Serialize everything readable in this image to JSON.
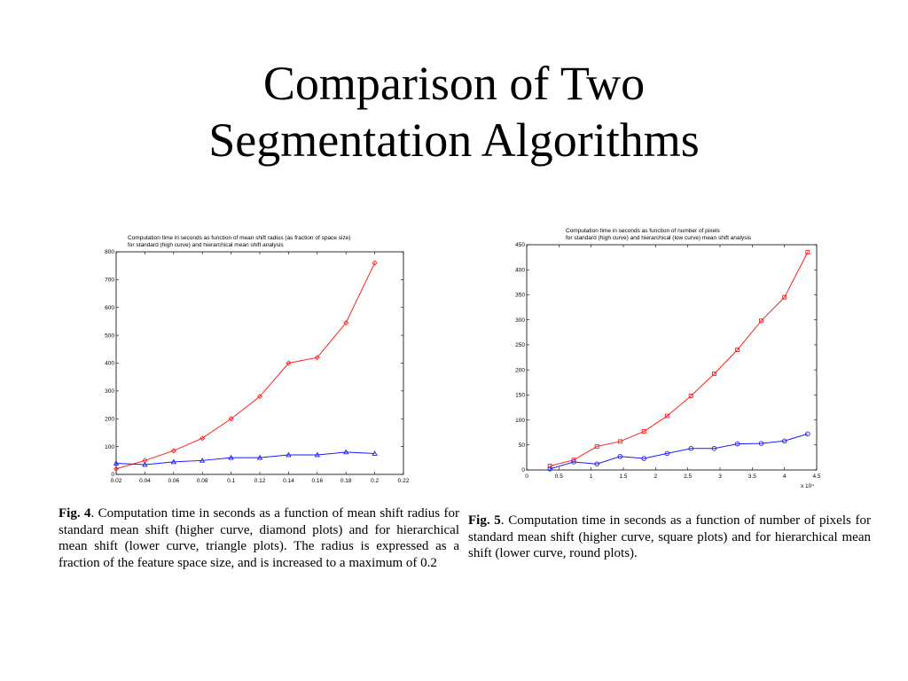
{
  "slide": {
    "title_line1": "Comparison of Two",
    "title_line2": "Segmentation Algorithms"
  },
  "fig4": {
    "caption_label": "Fig. 4",
    "caption_text": ".  Computation time in seconds as a function of mean shift radius for standard mean shift (higher curve, diamond plots) and for hierarchical mean shift (lower curve, triangle plots). The radius is expressed as a fraction of the feature space size, and is increased to a maximum of 0.2"
  },
  "fig5": {
    "caption_label": "Fig. 5",
    "caption_text": ".  Computation time in seconds as a function of number of pixels for standard mean shift (higher curve, square plots) and for hierarchical mean shift (lower curve, round plots)."
  },
  "colors": {
    "standard": "#ff2020",
    "hierarchical": "#1a1aff",
    "axis": "#000000"
  },
  "chart_data": [
    {
      "type": "line",
      "title": "Computation time in seconds as function of mean shift radius (as fraction of space size)",
      "subtitle": "for standard (high curve) and hierarchical mean shift analysis",
      "xlabel": "",
      "ylabel": "",
      "xlim": [
        0.02,
        0.22
      ],
      "ylim": [
        0,
        800
      ],
      "xticks": [
        0.02,
        0.04,
        0.06,
        0.08,
        0.1,
        0.12,
        0.14,
        0.16,
        0.18,
        0.2,
        0.22
      ],
      "xtick_labels": [
        "0.02",
        "0.04",
        "0.06",
        "0.08",
        "0.1",
        "0.12",
        "0.14",
        "0.16",
        "0.18",
        "0.2",
        "0.22"
      ],
      "yticks": [
        0,
        100,
        200,
        300,
        400,
        500,
        600,
        700,
        800
      ],
      "ytick_labels": [
        "0",
        "100",
        "200",
        "300",
        "400",
        "500",
        "600",
        "700",
        "800"
      ],
      "xtick_exponent": "",
      "grid": false,
      "series": [
        {
          "marker": "diamond",
          "color": "#ff2020",
          "x": [
            0.02,
            0.04,
            0.06,
            0.08,
            0.1,
            0.12,
            0.14,
            0.16,
            0.18,
            0.2
          ],
          "y": [
            20,
            50,
            85,
            130,
            200,
            280,
            400,
            420,
            545,
            760
          ]
        },
        {
          "marker": "triangle",
          "color": "#1a1aff",
          "x": [
            0.02,
            0.04,
            0.06,
            0.08,
            0.1,
            0.12,
            0.14,
            0.16,
            0.18,
            0.2
          ],
          "y": [
            40,
            35,
            45,
            50,
            60,
            60,
            70,
            70,
            80,
            75
          ]
        }
      ]
    },
    {
      "type": "line",
      "title": "Computation time in seconds as function of number of pixels",
      "subtitle": "for standard (high curve) and hierarchical (low curve) mean shift analysis",
      "xlabel": "",
      "ylabel": "",
      "xlim": [
        0,
        4.5
      ],
      "ylim": [
        0,
        450
      ],
      "xticks": [
        0,
        0.5,
        1,
        1.5,
        2,
        2.5,
        3,
        3.5,
        4,
        4.5
      ],
      "xtick_labels": [
        "0",
        "0.5",
        "1",
        "1.5",
        "2",
        "2.5",
        "3",
        "3.5",
        "4",
        "4.5"
      ],
      "yticks": [
        0,
        50,
        100,
        150,
        200,
        250,
        300,
        350,
        400,
        450
      ],
      "ytick_labels": [
        "0",
        "50",
        "100",
        "150",
        "200",
        "250",
        "300",
        "350",
        "400",
        "450"
      ],
      "xtick_exponent": "x 10⁴",
      "grid": false,
      "series": [
        {
          "marker": "square",
          "color": "#ff2020",
          "x": [
            0.36,
            0.73,
            1.09,
            1.45,
            1.82,
            2.18,
            2.55,
            2.91,
            3.27,
            3.64,
            4.0,
            4.36
          ],
          "y": [
            8,
            20,
            47,
            57,
            77,
            108,
            148,
            192,
            240,
            298,
            345,
            435
          ]
        },
        {
          "marker": "circle",
          "color": "#1a1aff",
          "x": [
            0.36,
            0.73,
            1.09,
            1.45,
            1.82,
            2.18,
            2.55,
            2.91,
            3.27,
            3.64,
            4.0,
            4.36
          ],
          "y": [
            2,
            16,
            12,
            27,
            23,
            33,
            43,
            43,
            52,
            53,
            58,
            72
          ]
        }
      ]
    }
  ]
}
